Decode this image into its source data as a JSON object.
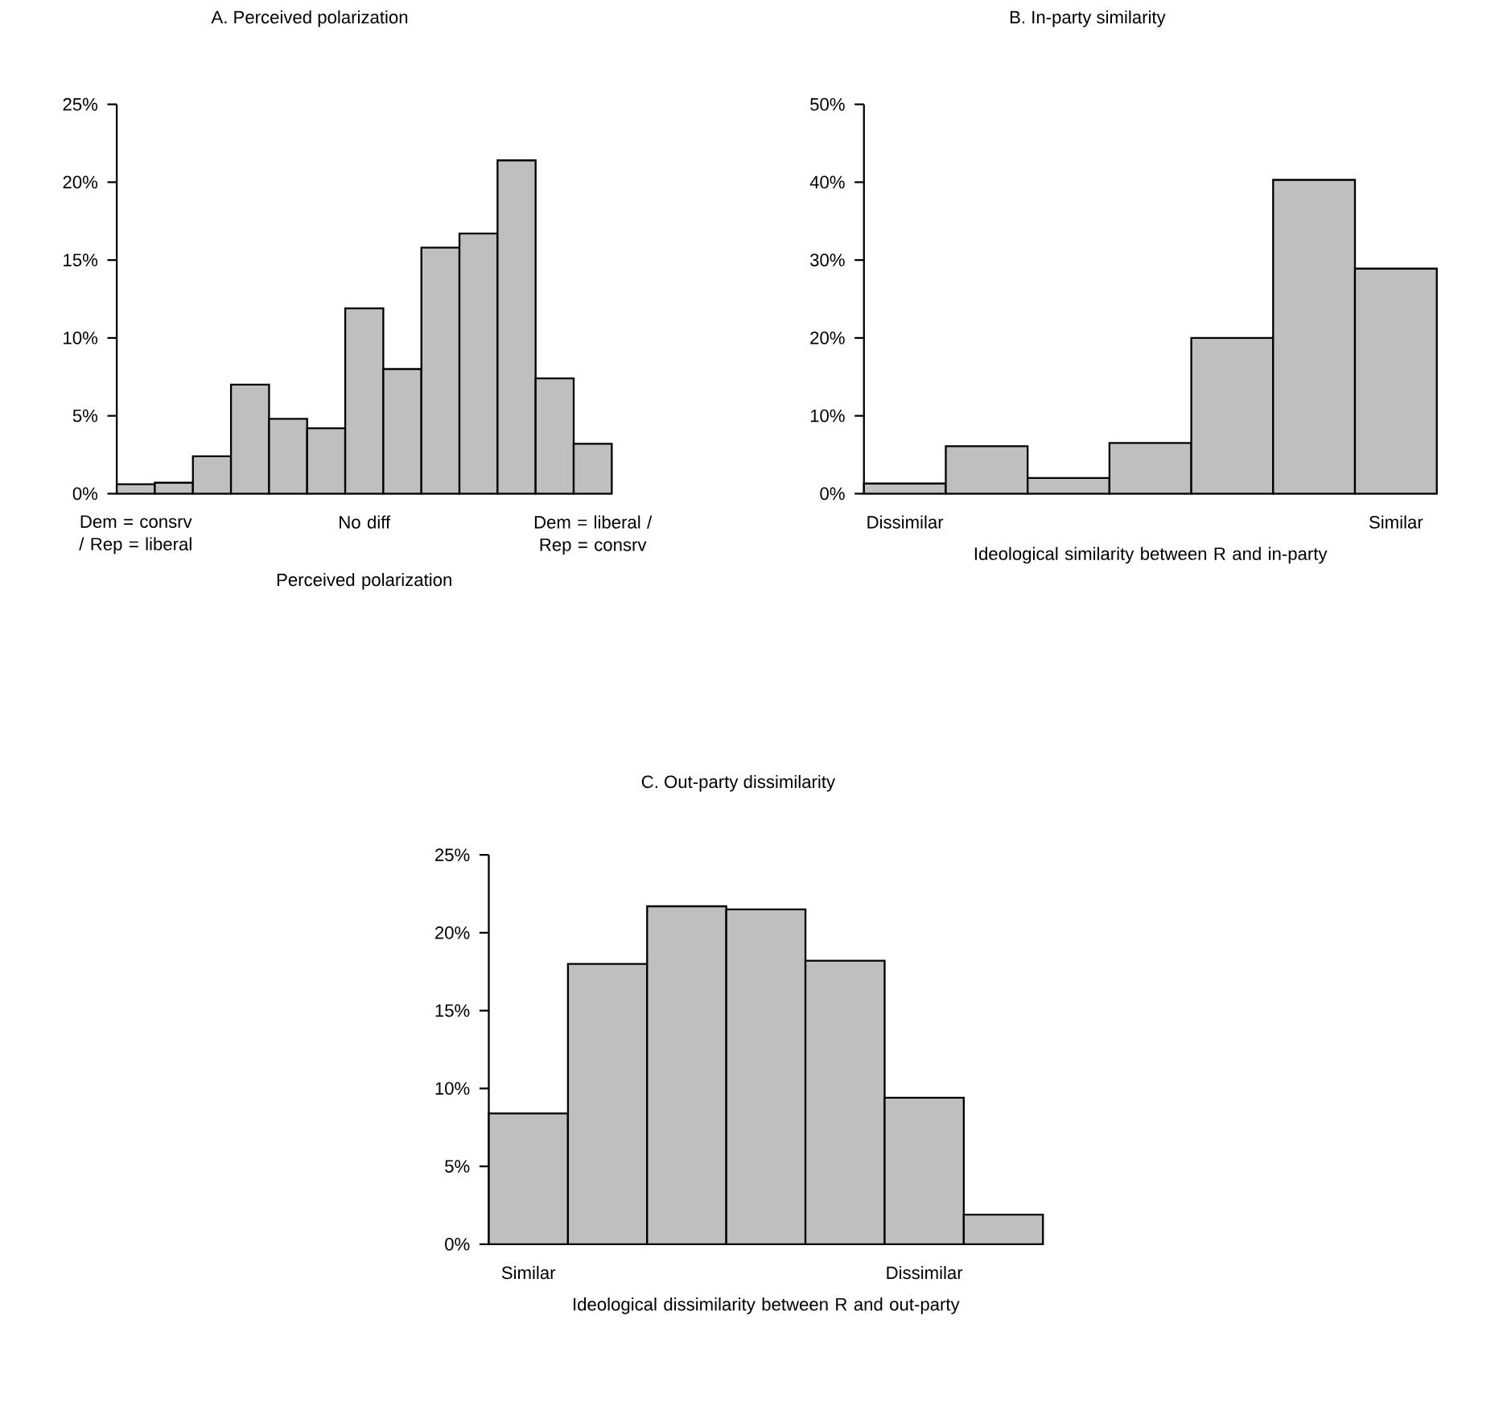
{
  "chart_data": [
    {
      "type": "bar",
      "title": "A. Perceived polarization",
      "xlabel": "Perceived polarization",
      "categories": [
        "Dem = consrv / Rep = liberal",
        null,
        null,
        null,
        null,
        null,
        "No diff",
        null,
        null,
        null,
        null,
        null,
        "Dem = liberal / Rep = consrv"
      ],
      "values": [
        0.6,
        0.7,
        2.4,
        7.0,
        4.8,
        4.2,
        11.9,
        8.0,
        15.8,
        16.7,
        21.4,
        7.4,
        3.2
      ],
      "color": "#bfbfbf",
      "ylim": [
        0,
        25
      ],
      "yticks": [
        {
          "value": 0,
          "label": "0%"
        },
        {
          "value": 5,
          "label": "5%"
        },
        {
          "value": 10,
          "label": "10%"
        },
        {
          "value": 15,
          "label": "15%"
        },
        {
          "value": 20,
          "label": "20%"
        },
        {
          "value": 25,
          "label": "25%"
        }
      ]
    },
    {
      "type": "bar",
      "title": "B. In-party similarity",
      "xlabel": "Ideological similarity between R and in-party",
      "categories": [
        "Dissimilar",
        null,
        null,
        null,
        null,
        null,
        "Similar"
      ],
      "values": [
        1.3,
        6.1,
        2.0,
        6.5,
        20.0,
        40.3,
        28.9
      ],
      "color": "#bfbfbf",
      "ylim": [
        0,
        50
      ],
      "yticks": [
        {
          "value": 0,
          "label": "0%"
        },
        {
          "value": 10,
          "label": "10%"
        },
        {
          "value": 20,
          "label": "20%"
        },
        {
          "value": 30,
          "label": "30%"
        },
        {
          "value": 40,
          "label": "40%"
        },
        {
          "value": 50,
          "label": "50%"
        }
      ]
    },
    {
      "type": "bar",
      "title": "C. Out-party dissimilarity",
      "xlabel": "Ideological dissimilarity between R and out-party",
      "categories": [
        "Similar",
        null,
        null,
        null,
        null,
        "Dissimilar",
        null
      ],
      "values": [
        8.4,
        18.0,
        21.7,
        21.5,
        18.2,
        9.4,
        1.9
      ],
      "color": "#bfbfbf",
      "ylim": [
        0,
        25
      ],
      "yticks": [
        {
          "value": 0,
          "label": "0%"
        },
        {
          "value": 5,
          "label": "5%"
        },
        {
          "value": 10,
          "label": "10%"
        },
        {
          "value": 15,
          "label": "15%"
        },
        {
          "value": 20,
          "label": "20%"
        },
        {
          "value": 25,
          "label": "25%"
        }
      ]
    }
  ]
}
